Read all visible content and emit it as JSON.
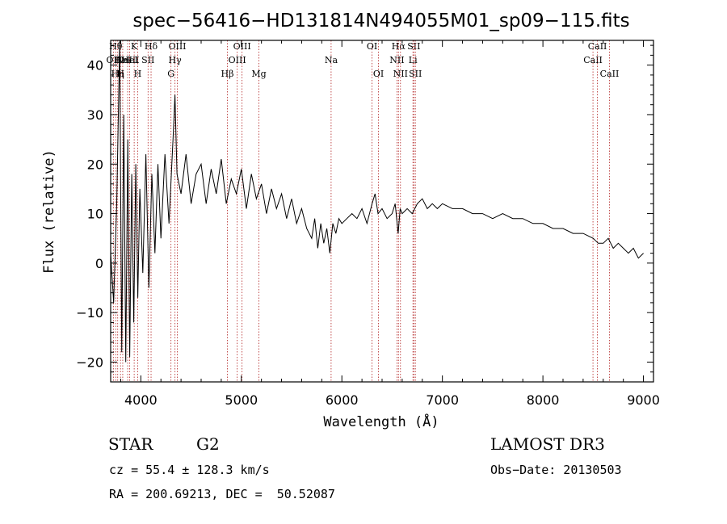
{
  "chart_data": {
    "type": "line",
    "title": "spec−56416−HD131814N494055M01_sp09−115.fits",
    "xlabel": "Wavelength (Å)",
    "ylabel": "Flux (relative)",
    "xlim": [
      3700,
      9100
    ],
    "ylim": [
      -24,
      45
    ],
    "xticks": [
      4000,
      5000,
      6000,
      7000,
      8000,
      9000
    ],
    "yticks": [
      -20,
      -10,
      0,
      10,
      20,
      30,
      40
    ],
    "xtick_labels": [
      "4000",
      "5000",
      "6000",
      "7000",
      "8000",
      "9000"
    ],
    "ytick_labels": [
      "−20",
      "−10",
      "0",
      "10",
      "20",
      "30",
      "40"
    ],
    "series": [
      {
        "name": "spectrum",
        "x": [
          3700,
          3730,
          3760,
          3790,
          3810,
          3830,
          3850,
          3870,
          3890,
          3910,
          3930,
          3950,
          3970,
          3990,
          4020,
          4050,
          4080,
          4110,
          4140,
          4170,
          4200,
          4240,
          4280,
          4320,
          4340,
          4360,
          4400,
          4450,
          4500,
          4550,
          4600,
          4650,
          4700,
          4750,
          4800,
          4850,
          4900,
          4950,
          5000,
          5050,
          5100,
          5150,
          5200,
          5250,
          5300,
          5350,
          5400,
          5450,
          5500,
          5550,
          5600,
          5650,
          5700,
          5730,
          5760,
          5790,
          5820,
          5850,
          5880,
          5910,
          5940,
          5970,
          6000,
          6050,
          6100,
          6150,
          6200,
          6250,
          6300,
          6330,
          6360,
          6400,
          6450,
          6500,
          6530,
          6560,
          6580,
          6600,
          6650,
          6700,
          6750,
          6800,
          6850,
          6900,
          6950,
          7000,
          7100,
          7200,
          7300,
          7400,
          7500,
          7600,
          7700,
          7800,
          7900,
          8000,
          8100,
          8200,
          8300,
          8400,
          8500,
          8550,
          8600,
          8650,
          8700,
          8750,
          8800,
          8850,
          8900,
          8950,
          9000
        ],
        "y": [
          2,
          -8,
          12,
          45,
          -18,
          30,
          -20,
          25,
          -19,
          18,
          -12,
          20,
          -7,
          15,
          -2,
          22,
          -5,
          18,
          2,
          20,
          5,
          22,
          8,
          25,
          34,
          18,
          14,
          22,
          12,
          18,
          20,
          12,
          19,
          14,
          21,
          12,
          17,
          14,
          19,
          11,
          18,
          13,
          16,
          10,
          15,
          11,
          14,
          9,
          13,
          8,
          11,
          7,
          5,
          9,
          3,
          8,
          4,
          7,
          2,
          8,
          6,
          9,
          8,
          9,
          10,
          9,
          11,
          8,
          12,
          14,
          10,
          11,
          9,
          10,
          12,
          6,
          11,
          10,
          11,
          10,
          12,
          13,
          11,
          12,
          11,
          12,
          11,
          11,
          10,
          10,
          9,
          10,
          9,
          9,
          8,
          8,
          7,
          7,
          6,
          6,
          5,
          4,
          4,
          5,
          3,
          4,
          3,
          2,
          3,
          1,
          2
        ]
      }
    ],
    "lines": [
      {
        "x": 3727,
        "label": "OII",
        "row": 1
      },
      {
        "x": 3750,
        "label": "Hθ",
        "row": 0
      },
      {
        "x": 3770,
        "label": "Hη",
        "row": 2
      },
      {
        "x": 3798,
        "label": "H",
        "row": 2
      },
      {
        "x": 3820,
        "label": "HeI",
        "row": 1
      },
      {
        "x": 3869,
        "label": "NeIII",
        "row": 1
      },
      {
        "x": 3889,
        "label": "HeI",
        "row": 1
      },
      {
        "x": 3934,
        "label": "K",
        "row": 0
      },
      {
        "x": 3969,
        "label": "H",
        "row": 2
      },
      {
        "x": 4072,
        "label": "SII",
        "row": 1
      },
      {
        "x": 4102,
        "label": "Hδ",
        "row": 0
      },
      {
        "x": 4300,
        "label": "G",
        "row": 2
      },
      {
        "x": 4340,
        "label": "Hγ",
        "row": 1
      },
      {
        "x": 4363,
        "label": "OIII",
        "row": 0
      },
      {
        "x": 4861,
        "label": "Hβ",
        "row": 2
      },
      {
        "x": 4959,
        "label": "OIII",
        "row": 1
      },
      {
        "x": 5007,
        "label": "OIII",
        "row": 0
      },
      {
        "x": 5175,
        "label": "Mg",
        "row": 2
      },
      {
        "x": 5893,
        "label": "Na",
        "row": 1
      },
      {
        "x": 6300,
        "label": "OI",
        "row": 0
      },
      {
        "x": 6364,
        "label": "OI",
        "row": 2
      },
      {
        "x": 6548,
        "label": "NII",
        "row": 1
      },
      {
        "x": 6563,
        "label": "Hα",
        "row": 0
      },
      {
        "x": 6583,
        "label": "NII",
        "row": 2
      },
      {
        "x": 6707,
        "label": "Li",
        "row": 1
      },
      {
        "x": 6716,
        "label": "SII",
        "row": 0
      },
      {
        "x": 6731,
        "label": "SII",
        "row": 2
      },
      {
        "x": 8498,
        "label": "CaII",
        "row": 1
      },
      {
        "x": 8542,
        "label": "CaII",
        "row": 0
      },
      {
        "x": 8662,
        "label": "CaII",
        "row": 2
      }
    ]
  },
  "info": {
    "class": "STAR",
    "subclass": "G2",
    "survey": "LAMOST DR3",
    "redshift": "cz = 55.4 ± 128.3 km/s",
    "obs_date": "Obs−Date: 20130503",
    "coords": "RA = 200.69213, DEC =  50.52087"
  },
  "colors": {
    "line_marker": "#b22222",
    "spectrum": "#000000"
  }
}
